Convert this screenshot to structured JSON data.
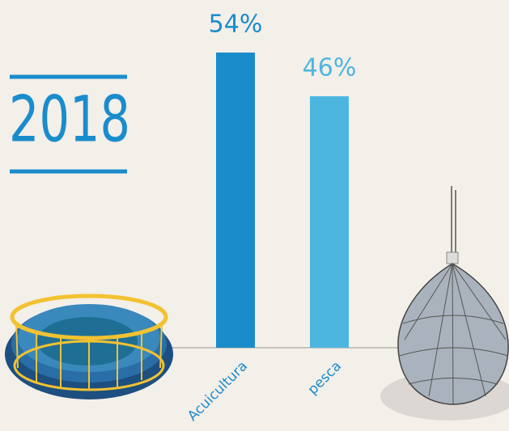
{
  "chart_data": {
    "type": "bar",
    "title": "2018",
    "categories": [
      "Acuicultura",
      "pesca"
    ],
    "values": [
      54,
      46
    ],
    "value_labels": [
      "54%",
      "46%"
    ],
    "colors": [
      "#1a8ccc",
      "#4db6e0"
    ]
  }
}
